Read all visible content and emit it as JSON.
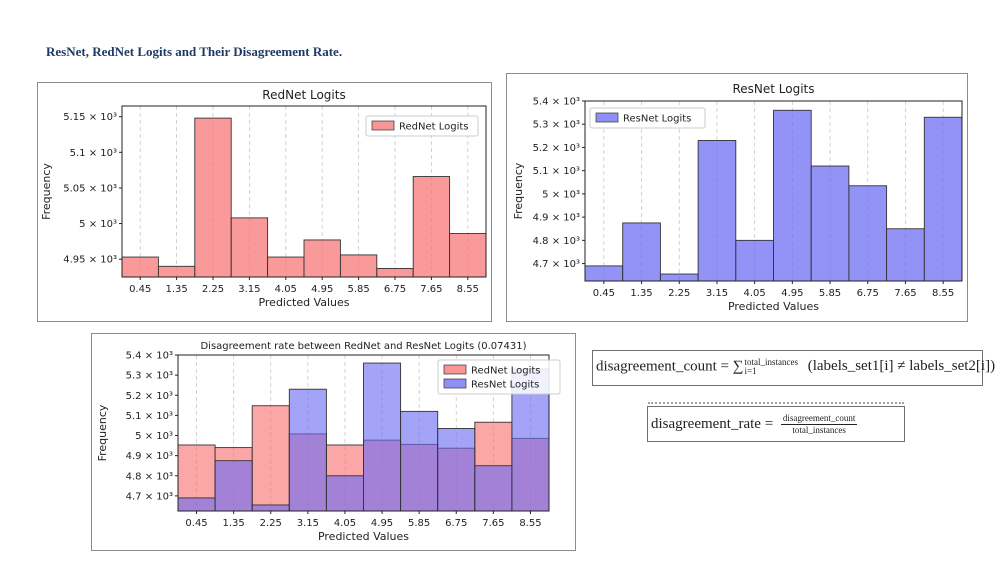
{
  "page": {
    "heading": "ResNet, RedNet Logits and Their Disagreement Rate."
  },
  "colors": {
    "rednet": "#f87171",
    "resnet": "#6a6af4",
    "overlap": "#7b3fb0",
    "edge": "#333333"
  },
  "chart_data": [
    {
      "type": "bar",
      "id": "rednet",
      "title": "RedNet Logits",
      "xlabel": "Predicted Values",
      "ylabel": "Frequency",
      "categories": [
        "0.45",
        "1.35",
        "2.25",
        "3.15",
        "4.05",
        "4.95",
        "5.85",
        "6.75",
        "7.65",
        "8.55"
      ],
      "series": [
        {
          "name": "RedNet Logits",
          "values": [
            4953,
            4940,
            5148,
            5008,
            4953,
            4977,
            4956,
            4937,
            5066,
            4986
          ]
        }
      ],
      "ylim": [
        4925,
        5165
      ],
      "yticks": [
        4950,
        5000,
        5050,
        5100,
        5150
      ],
      "ytick_labels": [
        "4.95 × 10³",
        "5 × 10³",
        "5.05 × 10³",
        "5.1 × 10³",
        "5.15 × 10³"
      ],
      "legend": "top-right",
      "grid": "vertical-dashed"
    },
    {
      "type": "bar",
      "id": "resnet",
      "title": "ResNet Logits",
      "xlabel": "Predicted Values",
      "ylabel": "Frequency",
      "categories": [
        "0.45",
        "1.35",
        "2.25",
        "3.15",
        "4.05",
        "4.95",
        "5.85",
        "6.75",
        "7.65",
        "8.55"
      ],
      "series": [
        {
          "name": "ResNet Logits",
          "values": [
            4690,
            4875,
            4655,
            5230,
            4800,
            5360,
            5120,
            5035,
            4850,
            5330
          ]
        }
      ],
      "ylim": [
        4625,
        5400
      ],
      "yticks": [
        4700,
        4800,
        4900,
        5000,
        5100,
        5200,
        5300,
        5400
      ],
      "ytick_labels": [
        "4.7 × 10³",
        "4.8 × 10³",
        "4.9 × 10³",
        "5 × 10³",
        "5.1 × 10³",
        "5.2 × 10³",
        "5.3 × 10³",
        "5.4 × 10³"
      ],
      "legend": "top-left",
      "grid": "vertical-dashed"
    },
    {
      "type": "bar",
      "id": "overlay",
      "title": "Disagreement rate between RedNet and ResNet Logits (0.07431)",
      "xlabel": "Predicted Values",
      "ylabel": "Frequency",
      "categories": [
        "0.45",
        "1.35",
        "2.25",
        "3.15",
        "4.05",
        "4.95",
        "5.85",
        "6.75",
        "7.65",
        "8.55"
      ],
      "series": [
        {
          "name": "RedNet Logits",
          "values": [
            4953,
            4940,
            5148,
            5008,
            4953,
            4977,
            4956,
            4937,
            5066,
            4986
          ]
        },
        {
          "name": "ResNet Logits",
          "values": [
            4690,
            4875,
            4655,
            5230,
            4800,
            5360,
            5120,
            5035,
            4850,
            5330
          ]
        }
      ],
      "ylim": [
        4625,
        5400
      ],
      "yticks": [
        4700,
        4800,
        4900,
        5000,
        5100,
        5200,
        5300,
        5400
      ],
      "ytick_labels": [
        "4.7 × 10³",
        "4.8 × 10³",
        "4.9 × 10³",
        "5 × 10³",
        "5.1 × 10³",
        "5.2 × 10³",
        "5.3 × 10³",
        "5.4 × 10³"
      ],
      "legend": "top-right",
      "grid": "vertical-dashed"
    }
  ],
  "formulas": {
    "count": {
      "lhs": "disagreement_count",
      "eq": "=",
      "sum": "∑",
      "upper": "total_instances",
      "lower": "i=1",
      "body": "(labels_set1[i] ≠ labels_set2[i])"
    },
    "rate": {
      "lhs": "disagreement_rate",
      "eq": "=",
      "numerator": "disagreement_count",
      "denominator": "total_instances"
    }
  }
}
